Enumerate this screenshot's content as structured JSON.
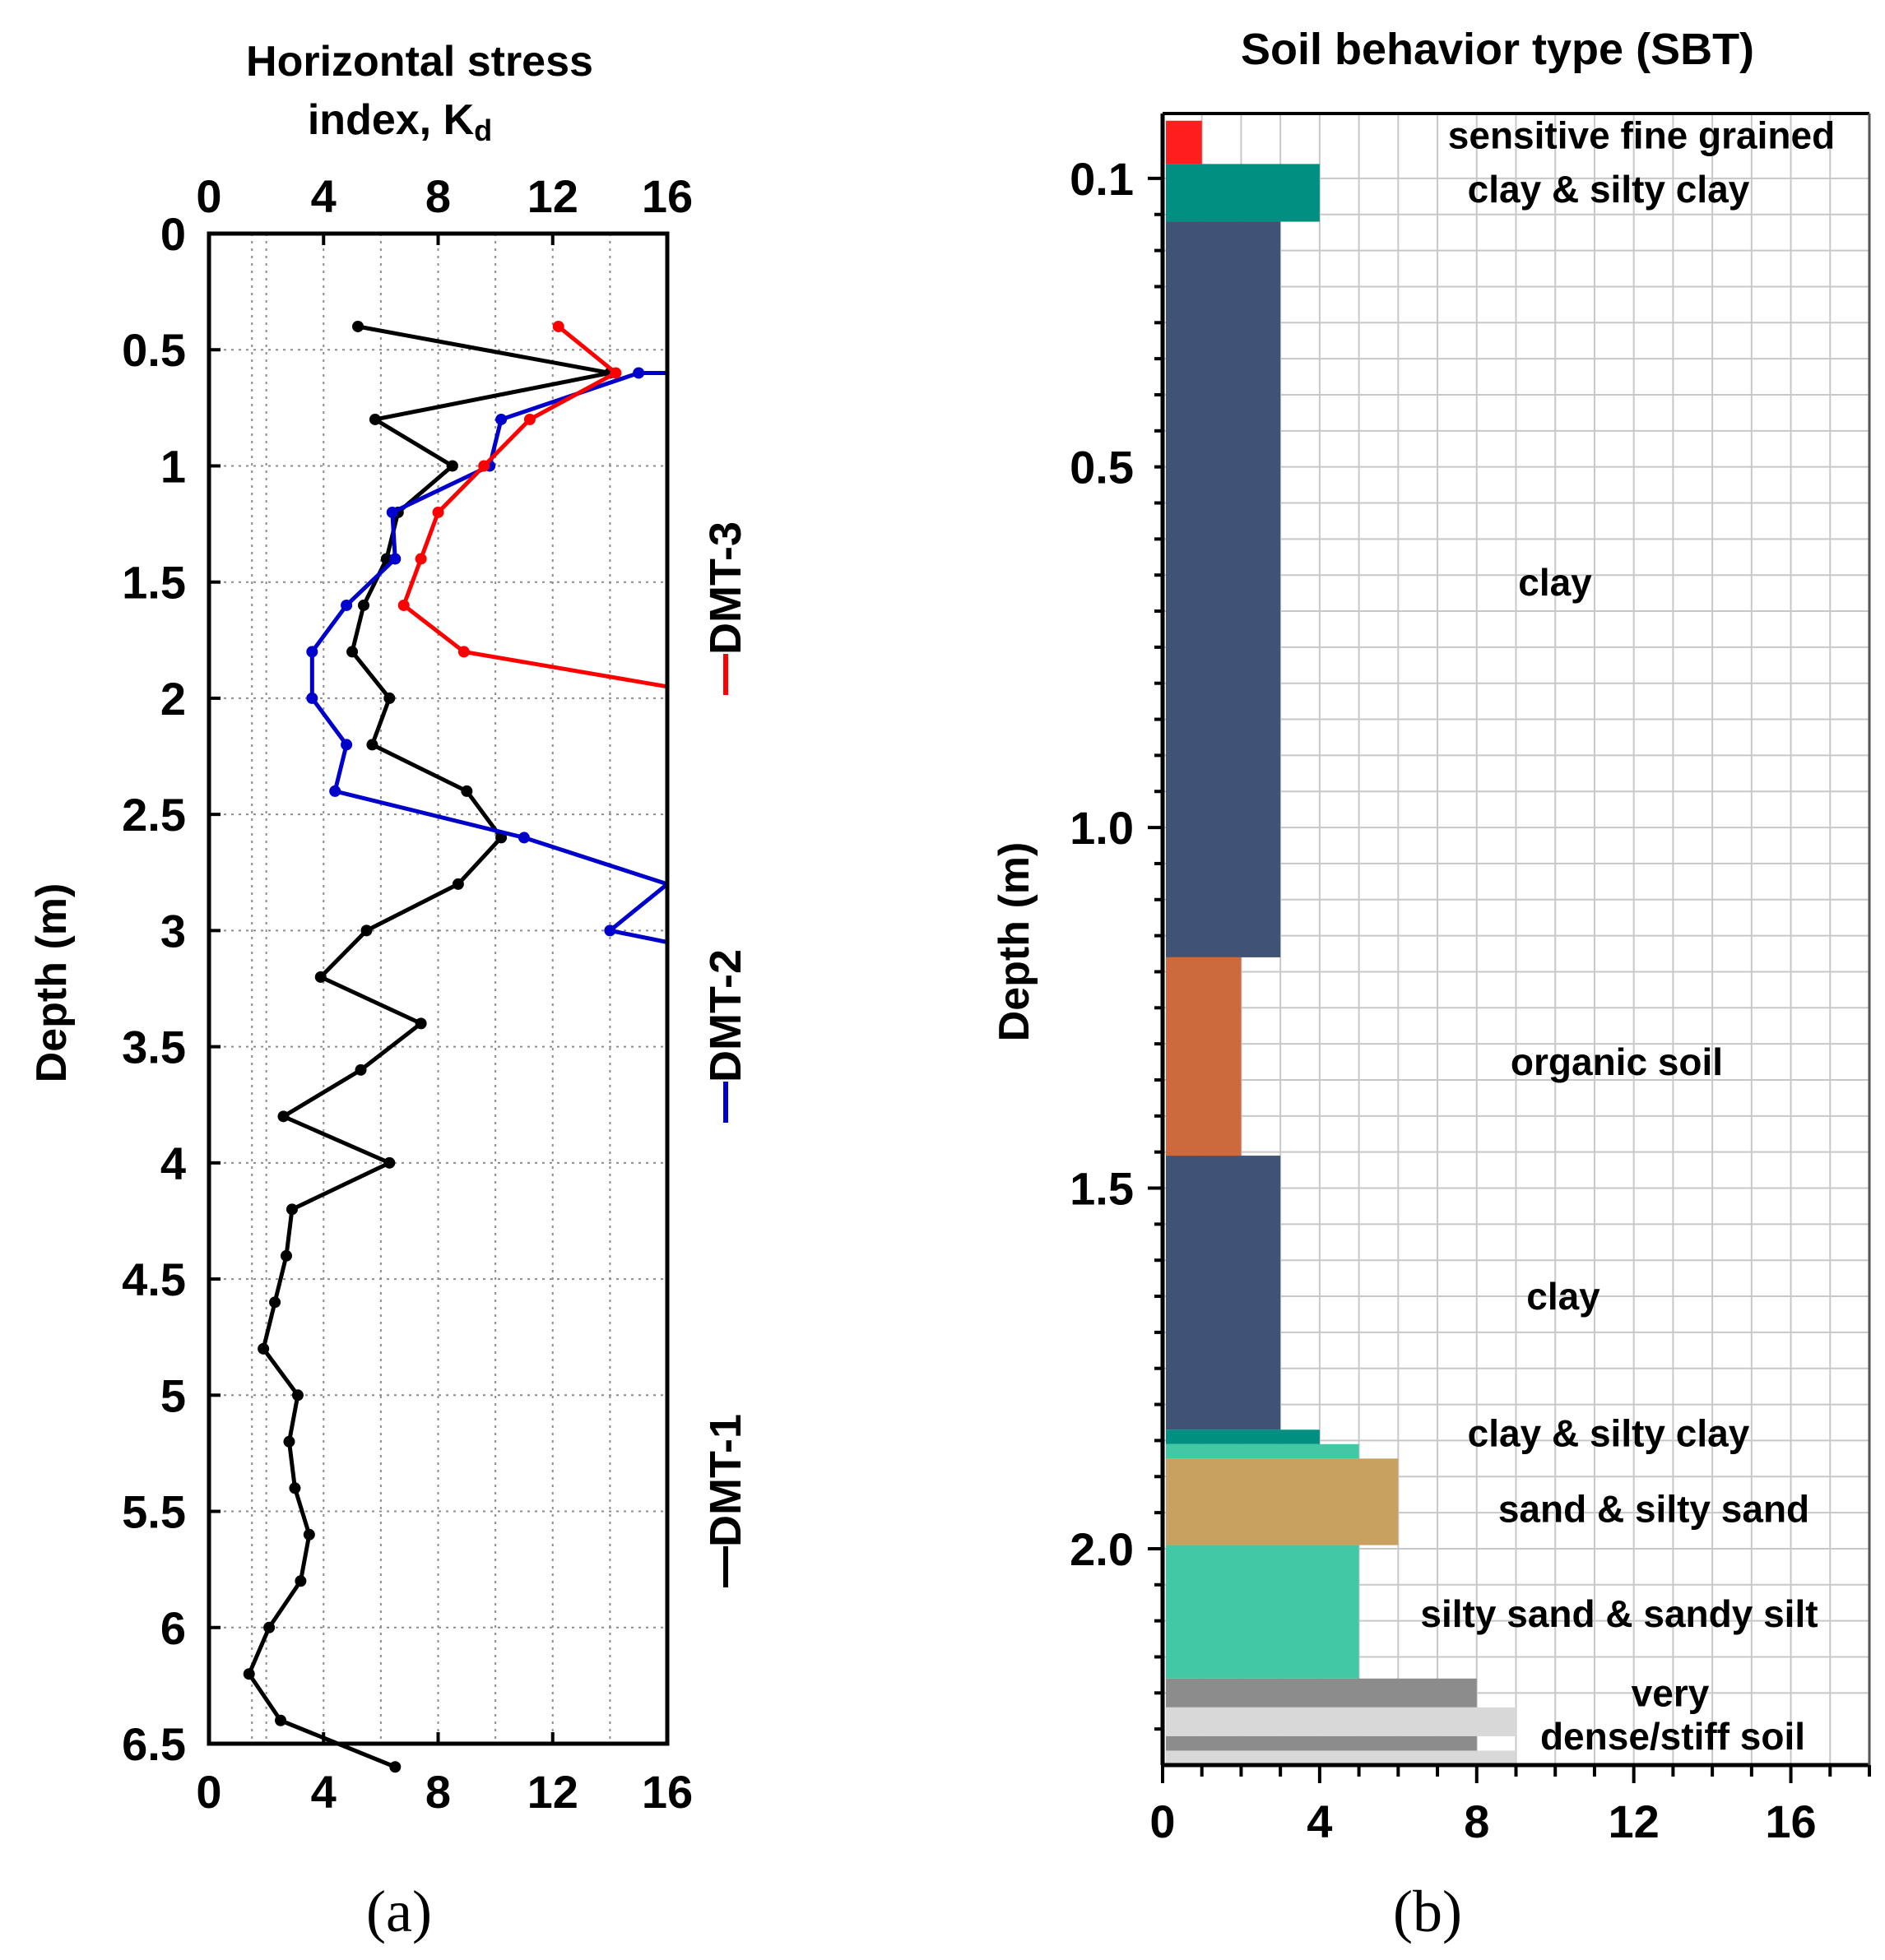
{
  "chart_data": [
    {
      "type": "line",
      "title": "Horizontal stress index, K",
      "title_subscript": "d",
      "title_lines": [
        "Horizontal stress",
        "index, K"
      ],
      "xlabel": "",
      "ylabel": "Depth (m)",
      "xlim": [
        0,
        16
      ],
      "ylim": [
        0,
        6.5
      ],
      "xticks": [
        "0",
        "4",
        "8",
        "12",
        "16"
      ],
      "yticks": [
        "0",
        "0.5",
        "1",
        "1.5",
        "2",
        "2.5",
        "3",
        "3.5",
        "4",
        "4.5",
        "5",
        "5.5",
        "6",
        "6.5"
      ],
      "grid": true,
      "legend_placement": "right, vertical",
      "caption": "(a)",
      "series": [
        {
          "name": "DMT-1",
          "color": "#000000",
          "points": [
            [
              5.2,
              0.4
            ],
            [
              14,
              0.6
            ],
            [
              5.8,
              0.8
            ],
            [
              8.5,
              1.0
            ],
            [
              6.6,
              1.2
            ],
            [
              6.2,
              1.4
            ],
            [
              5.4,
              1.6
            ],
            [
              5.0,
              1.8
            ],
            [
              6.3,
              2.0
            ],
            [
              5.7,
              2.2
            ],
            [
              9.0,
              2.4
            ],
            [
              10.2,
              2.6
            ],
            [
              8.7,
              2.8
            ],
            [
              5.5,
              3.0
            ],
            [
              3.9,
              3.2
            ],
            [
              7.4,
              3.4
            ],
            [
              5.3,
              3.6
            ],
            [
              2.6,
              3.8
            ],
            [
              6.3,
              4.0
            ],
            [
              2.9,
              4.2
            ],
            [
              2.7,
              4.4
            ],
            [
              2.3,
              4.6
            ],
            [
              1.9,
              4.8
            ],
            [
              3.1,
              5.0
            ],
            [
              2.8,
              5.2
            ],
            [
              3.0,
              5.4
            ],
            [
              3.5,
              5.6
            ],
            [
              3.2,
              5.8
            ],
            [
              2.1,
              6.0
            ],
            [
              1.4,
              6.2
            ],
            [
              2.5,
              6.4
            ],
            [
              6.5,
              6.6
            ]
          ]
        },
        {
          "name": "DMT-2",
          "color": "#0000cc",
          "points": [
            [
              16,
              0.6
            ],
            [
              15,
              0.6
            ],
            [
              10.2,
              0.8
            ],
            [
              9.8,
              1.0
            ],
            [
              6.4,
              1.2
            ],
            [
              6.5,
              1.4
            ],
            [
              4.8,
              1.6
            ],
            [
              3.6,
              1.8
            ],
            [
              3.6,
              2.0
            ],
            [
              4.8,
              2.2
            ],
            [
              4.4,
              2.4
            ],
            [
              11,
              2.6
            ],
            [
              16,
              2.8
            ],
            [
              14,
              3.0
            ],
            [
              16,
              3.05
            ]
          ]
        },
        {
          "name": "DMT-3",
          "color": "#ff0000",
          "points": [
            [
              12.2,
              0.4
            ],
            [
              14.2,
              0.6
            ],
            [
              11.2,
              0.8
            ],
            [
              9.6,
              1.0
            ],
            [
              8.0,
              1.2
            ],
            [
              7.4,
              1.4
            ],
            [
              6.8,
              1.6
            ],
            [
              8.9,
              1.8
            ],
            [
              16,
              1.95
            ]
          ]
        }
      ]
    },
    {
      "type": "bar",
      "orientation": "horizontal",
      "title": "Soil behavior type (SBT)",
      "ylabel": "Depth (m)",
      "xlim": [
        0,
        18
      ],
      "ylim": [
        0.01,
        2.3
      ],
      "xticks": [
        "0",
        "4",
        "8",
        "12",
        "16"
      ],
      "yticks": [
        "0.1",
        "0.5",
        "1.0",
        "1.5",
        "2.0"
      ],
      "grid": true,
      "caption": "(b)",
      "layers": [
        {
          "top": 0.02,
          "bottom": 0.08,
          "value": 1,
          "color": "#ff1e1e",
          "label": "sensitive fine grained"
        },
        {
          "top": 0.08,
          "bottom": 0.16,
          "value": 4,
          "color": "#008f80",
          "label": "clay & silty clay"
        },
        {
          "top": 0.16,
          "bottom": 1.18,
          "value": 3,
          "color": "#405377",
          "label": "clay"
        },
        {
          "top": 1.18,
          "bottom": 1.455,
          "value": 2,
          "color": "#cc6a3d",
          "label": "organic soil"
        },
        {
          "top": 1.455,
          "bottom": 1.835,
          "value": 3,
          "color": "#405377",
          "label": "clay"
        },
        {
          "top": 1.835,
          "bottom": 1.855,
          "value": 4,
          "color": "#008f80",
          "label": "clay & silty clay"
        },
        {
          "top": 1.855,
          "bottom": 1.875,
          "value": 5,
          "color": "#42c9a3",
          "label": ""
        },
        {
          "top": 1.875,
          "bottom": 1.995,
          "value": 6,
          "color": "#c8a060",
          "label": "sand & silty sand"
        },
        {
          "top": 1.995,
          "bottom": 2.18,
          "value": 5,
          "color": "#42c9a3",
          "label": "silty sand & sandy silt"
        },
        {
          "top": 2.18,
          "bottom": 2.22,
          "value": 8,
          "color": "#8c8c8c",
          "label": ""
        },
        {
          "top": 2.22,
          "bottom": 2.26,
          "value": 9,
          "color": "#d8d8d8",
          "label": ""
        },
        {
          "top": 2.26,
          "bottom": 2.28,
          "value": 8,
          "color": "#8c8c8c",
          "label": ""
        },
        {
          "top": 2.28,
          "bottom": 2.3,
          "value": 9,
          "color": "#d8d8d8",
          "label": ""
        }
      ],
      "annotations": [
        {
          "text": "sensitive fine grained",
          "depth": 0.04
        },
        {
          "text": "clay & silty clay",
          "depth": 0.115
        },
        {
          "text": "clay",
          "depth": 0.66
        },
        {
          "text": "organic soil",
          "depth": 1.325
        },
        {
          "text": "clay",
          "depth": 1.65
        },
        {
          "text": "clay & silty clay",
          "depth": 1.84
        },
        {
          "text": "sand & silty sand",
          "depth": 1.945
        },
        {
          "text": "silty sand & sandy silt",
          "depth": 2.09
        },
        {
          "text": "very",
          "depth": 2.2
        },
        {
          "text": "dense/stiff soil",
          "depth": 2.26
        }
      ]
    }
  ]
}
